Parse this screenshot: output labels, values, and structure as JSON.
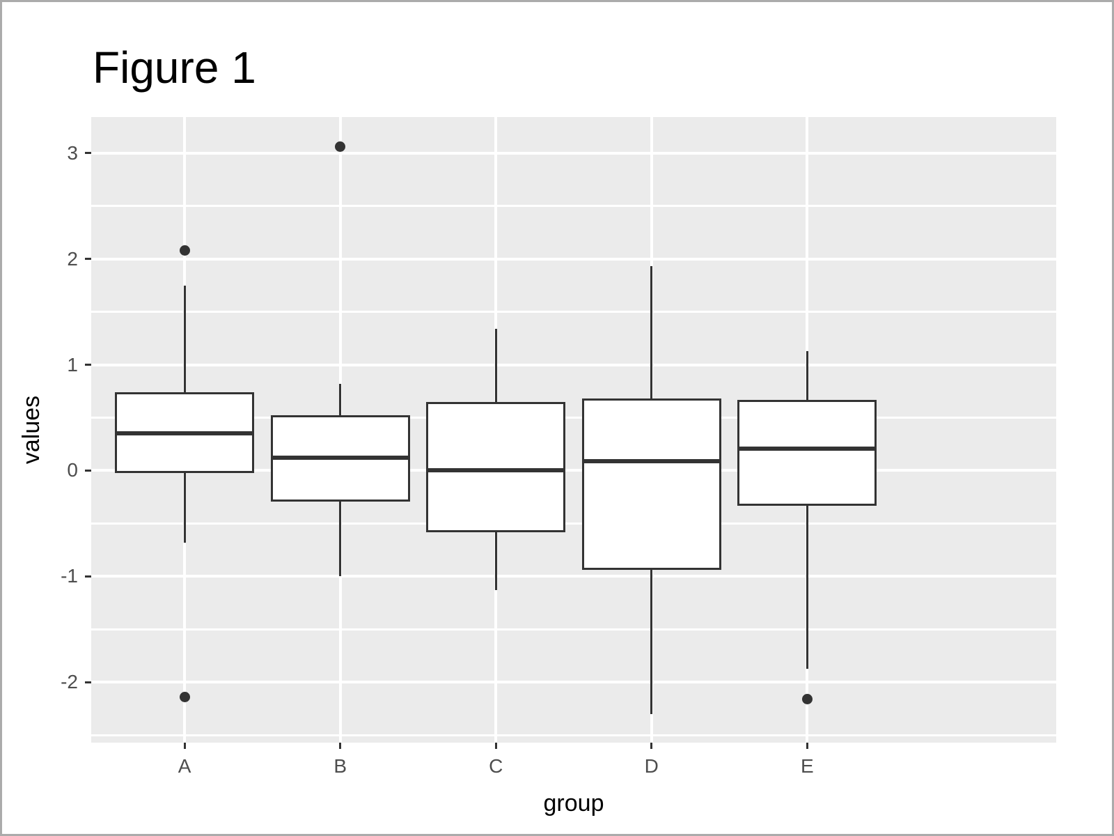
{
  "chart_data": {
    "type": "boxplot",
    "title": "Figure 1",
    "xlabel": "group",
    "ylabel": "values",
    "categories": [
      "A",
      "B",
      "C",
      "D",
      "E"
    ],
    "series": [
      {
        "name": "A",
        "whisker_low": -0.68,
        "q1": -0.02,
        "median": 0.35,
        "q3": 0.74,
        "whisker_high": 1.75,
        "outliers": [
          2.08,
          -2.14
        ]
      },
      {
        "name": "B",
        "whisker_low": -1.0,
        "q1": -0.29,
        "median": 0.12,
        "q3": 0.52,
        "whisker_high": 0.82,
        "outliers": [
          3.06
        ]
      },
      {
        "name": "C",
        "whisker_low": -1.13,
        "q1": -0.58,
        "median": 0.0,
        "q3": 0.65,
        "whisker_high": 1.34,
        "outliers": []
      },
      {
        "name": "D",
        "whisker_low": -2.3,
        "q1": -0.94,
        "median": 0.09,
        "q3": 0.68,
        "whisker_high": 1.93,
        "outliers": []
      },
      {
        "name": "E",
        "whisker_low": -1.87,
        "q1": -0.33,
        "median": 0.21,
        "q3": 0.67,
        "whisker_high": 1.13,
        "outliers": [
          -2.16
        ]
      }
    ],
    "y_ticks": [
      3,
      2,
      1,
      0,
      -1,
      -2
    ],
    "y_minor_ticks": [
      2.5,
      1.5,
      0.5,
      -0.5,
      -1.5,
      -2.5
    ],
    "ylim": [
      -2.57,
      3.34
    ],
    "grid": "on",
    "legend": "none",
    "colors": {
      "panel_background": "#EBEBEB",
      "gridline": "#FFFFFF",
      "box_stroke": "#333333",
      "box_fill": "#FFFFFF",
      "outlier": "#333333",
      "tick_label": "#4D4D4D",
      "text": "#000000",
      "frame_border": "#ABABAB"
    }
  }
}
